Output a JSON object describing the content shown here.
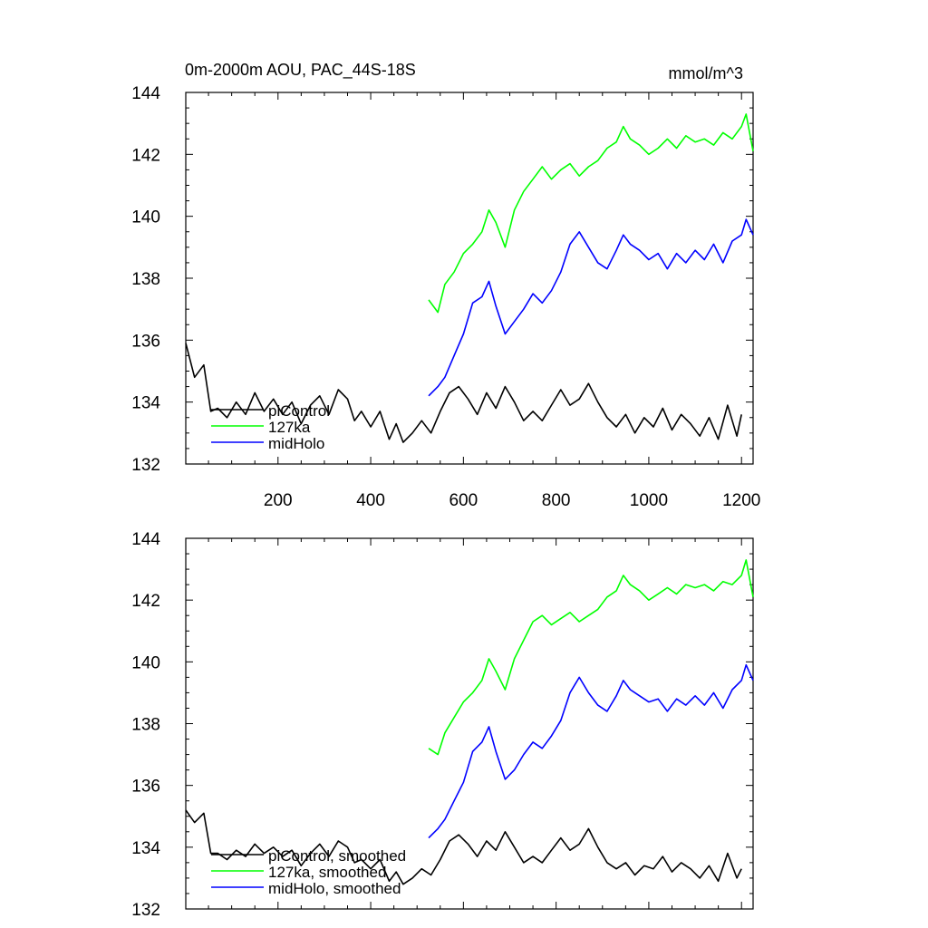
{
  "chart_data": [
    {
      "type": "line",
      "title": "0m-2000m AOU, PAC_44S-18S",
      "units": "mmol/m^3",
      "xlim": [
        1,
        1225
      ],
      "ylim": [
        132,
        144
      ],
      "x_tick_labels": [
        "200",
        "400",
        "600",
        "800",
        "1000",
        "1200"
      ],
      "x_tick_values": [
        200,
        400,
        600,
        800,
        1000,
        1200
      ],
      "y_tick_labels": [
        "132",
        "134",
        "136",
        "138",
        "140",
        "142",
        "144"
      ],
      "y_tick_values": [
        132,
        134,
        136,
        138,
        140,
        142,
        144
      ],
      "grid": false,
      "legend_position": "bottom-left",
      "series": [
        {
          "name": "piControl",
          "color": "#000000",
          "x": [
            1,
            20,
            40,
            55,
            70,
            90,
            110,
            130,
            150,
            170,
            190,
            210,
            230,
            250,
            270,
            290,
            310,
            330,
            350,
            365,
            380,
            400,
            420,
            440,
            455,
            470,
            490,
            510,
            530,
            550,
            570,
            590,
            610,
            630,
            650,
            670,
            690,
            710,
            730,
            750,
            770,
            790,
            810,
            830,
            850,
            870,
            890,
            910,
            930,
            950,
            970,
            990,
            1010,
            1030,
            1050,
            1070,
            1090,
            1110,
            1130,
            1150,
            1170,
            1190,
            1200
          ],
          "values": [
            135.9,
            134.8,
            135.2,
            133.7,
            133.8,
            133.5,
            134.0,
            133.6,
            134.3,
            133.7,
            134.1,
            133.6,
            134.0,
            133.3,
            133.9,
            134.2,
            133.6,
            134.4,
            134.1,
            133.4,
            133.7,
            133.2,
            133.7,
            132.8,
            133.3,
            132.7,
            133.0,
            133.4,
            133.0,
            133.7,
            134.3,
            134.5,
            134.1,
            133.6,
            134.3,
            133.8,
            134.5,
            134.0,
            133.4,
            133.7,
            133.4,
            133.9,
            134.4,
            133.9,
            134.1,
            134.6,
            134.0,
            133.5,
            133.2,
            133.6,
            133.0,
            133.5,
            133.2,
            133.8,
            133.1,
            133.6,
            133.3,
            132.9,
            133.5,
            132.8,
            133.9,
            132.9,
            133.6
          ]
        },
        {
          "name": "127ka",
          "color": "#00ff00",
          "x": [
            525,
            545,
            560,
            580,
            600,
            620,
            640,
            655,
            670,
            690,
            710,
            730,
            750,
            770,
            790,
            810,
            830,
            850,
            870,
            890,
            910,
            930,
            945,
            960,
            980,
            1000,
            1020,
            1040,
            1060,
            1080,
            1100,
            1120,
            1140,
            1160,
            1180,
            1200,
            1210,
            1225
          ],
          "values": [
            137.3,
            136.9,
            137.8,
            138.2,
            138.8,
            139.1,
            139.5,
            140.2,
            139.8,
            139.0,
            140.2,
            140.8,
            141.2,
            141.6,
            141.2,
            141.5,
            141.7,
            141.3,
            141.6,
            141.8,
            142.2,
            142.4,
            142.9,
            142.5,
            142.3,
            142.0,
            142.2,
            142.5,
            142.2,
            142.6,
            142.4,
            142.5,
            142.3,
            142.7,
            142.5,
            142.9,
            143.3,
            142.1
          ]
        },
        {
          "name": "midHolo",
          "color": "#0000ff",
          "x": [
            525,
            545,
            560,
            580,
            600,
            620,
            640,
            655,
            670,
            690,
            710,
            730,
            750,
            770,
            790,
            810,
            830,
            850,
            870,
            890,
            910,
            930,
            945,
            960,
            980,
            1000,
            1020,
            1040,
            1060,
            1080,
            1100,
            1120,
            1140,
            1160,
            1180,
            1200,
            1210,
            1225
          ],
          "values": [
            134.2,
            134.5,
            134.8,
            135.5,
            136.2,
            137.2,
            137.4,
            137.9,
            137.1,
            136.2,
            136.6,
            137.0,
            137.5,
            137.2,
            137.6,
            138.2,
            139.1,
            139.5,
            139.0,
            138.5,
            138.3,
            138.9,
            139.4,
            139.1,
            138.9,
            138.6,
            138.8,
            138.3,
            138.8,
            138.5,
            138.9,
            138.6,
            139.1,
            138.5,
            139.2,
            139.4,
            139.9,
            139.4
          ]
        }
      ]
    },
    {
      "type": "line",
      "title": "",
      "units": "",
      "xlim": [
        1,
        1225
      ],
      "ylim": [
        132,
        144
      ],
      "x_tick_labels": [],
      "y_tick_labels": [
        "132",
        "134",
        "136",
        "138",
        "140",
        "142",
        "144"
      ],
      "y_tick_values": [
        132,
        134,
        136,
        138,
        140,
        142,
        144
      ],
      "grid": false,
      "legend_position": "bottom-left",
      "series": [
        {
          "name": "piControl, smoothed",
          "color": "#000000",
          "x": [
            1,
            20,
            40,
            55,
            70,
            90,
            110,
            130,
            150,
            170,
            190,
            210,
            230,
            250,
            270,
            290,
            310,
            330,
            350,
            365,
            380,
            400,
            420,
            440,
            455,
            470,
            490,
            510,
            530,
            550,
            570,
            590,
            610,
            630,
            650,
            670,
            690,
            710,
            730,
            750,
            770,
            790,
            810,
            830,
            850,
            870,
            890,
            910,
            930,
            950,
            970,
            990,
            1010,
            1030,
            1050,
            1070,
            1090,
            1110,
            1130,
            1150,
            1170,
            1190,
            1200
          ],
          "values": [
            135.2,
            134.8,
            135.1,
            133.8,
            133.8,
            133.6,
            133.9,
            133.7,
            134.1,
            133.8,
            134.0,
            133.7,
            133.9,
            133.4,
            133.8,
            134.1,
            133.7,
            134.2,
            134.0,
            133.5,
            133.6,
            133.3,
            133.6,
            132.9,
            133.2,
            132.8,
            133.0,
            133.3,
            133.1,
            133.6,
            134.2,
            134.4,
            134.1,
            133.7,
            134.2,
            133.9,
            134.5,
            134.0,
            133.5,
            133.7,
            133.5,
            133.9,
            134.3,
            133.9,
            134.1,
            134.6,
            134.0,
            133.5,
            133.3,
            133.5,
            133.1,
            133.4,
            133.3,
            133.7,
            133.2,
            133.5,
            133.3,
            133.0,
            133.4,
            132.9,
            133.8,
            133.0,
            133.3
          ]
        },
        {
          "name": "127ka, smoothed",
          "color": "#00ff00",
          "x": [
            525,
            545,
            560,
            580,
            600,
            620,
            640,
            655,
            670,
            690,
            710,
            730,
            750,
            770,
            790,
            810,
            830,
            850,
            870,
            890,
            910,
            930,
            945,
            960,
            980,
            1000,
            1020,
            1040,
            1060,
            1080,
            1100,
            1120,
            1140,
            1160,
            1180,
            1200,
            1210,
            1225
          ],
          "values": [
            137.2,
            137.0,
            137.7,
            138.2,
            138.7,
            139.0,
            139.4,
            140.1,
            139.7,
            139.1,
            140.1,
            140.7,
            141.3,
            141.5,
            141.2,
            141.4,
            141.6,
            141.3,
            141.5,
            141.7,
            142.1,
            142.3,
            142.8,
            142.5,
            142.3,
            142.0,
            142.2,
            142.4,
            142.2,
            142.5,
            142.4,
            142.5,
            142.3,
            142.6,
            142.5,
            142.8,
            143.3,
            142.1
          ]
        },
        {
          "name": "midHolo, smoothed",
          "color": "#0000ff",
          "x": [
            525,
            545,
            560,
            580,
            600,
            620,
            640,
            655,
            670,
            690,
            710,
            730,
            750,
            770,
            790,
            810,
            830,
            850,
            870,
            890,
            910,
            930,
            945,
            960,
            980,
            1000,
            1020,
            1040,
            1060,
            1080,
            1100,
            1120,
            1140,
            1160,
            1180,
            1200,
            1210,
            1225
          ],
          "values": [
            134.3,
            134.6,
            134.9,
            135.5,
            136.1,
            137.1,
            137.4,
            137.9,
            137.1,
            136.2,
            136.5,
            137.0,
            137.4,
            137.2,
            137.6,
            138.1,
            139.0,
            139.5,
            139.0,
            138.6,
            138.4,
            138.9,
            139.4,
            139.1,
            138.9,
            138.7,
            138.8,
            138.4,
            138.8,
            138.6,
            138.9,
            138.6,
            139.0,
            138.5,
            139.1,
            139.4,
            139.9,
            139.4
          ]
        }
      ]
    }
  ]
}
